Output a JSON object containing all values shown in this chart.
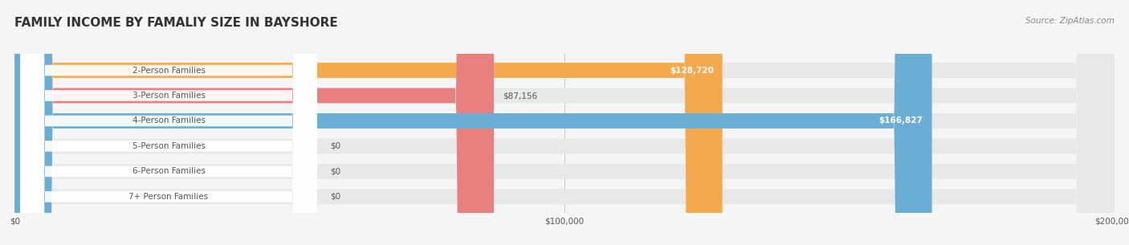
{
  "title": "FAMILY INCOME BY FAMALIY SIZE IN BAYSHORE",
  "source": "Source: ZipAtlas.com",
  "categories": [
    "2-Person Families",
    "3-Person Families",
    "4-Person Families",
    "5-Person Families",
    "6-Person Families",
    "7+ Person Families"
  ],
  "values": [
    128720,
    87156,
    166827,
    0,
    0,
    0
  ],
  "bar_colors": [
    "#F5A94E",
    "#E88080",
    "#6AAED6",
    "#C9A8D4",
    "#6BBFB5",
    "#A8B8E8"
  ],
  "value_labels": [
    "$128,720",
    "$87,156",
    "$166,827",
    "$0",
    "$0",
    "$0"
  ],
  "xmax": 200000,
  "xticks": [
    0,
    100000,
    200000
  ],
  "xtick_labels": [
    "$0",
    "$100,000",
    "$200,000"
  ],
  "bg_color": "#f5f5f5",
  "bar_bg_color": "#e8e8e8",
  "title_color": "#333333",
  "label_text_color": "#555555",
  "title_fontsize": 11,
  "label_fontsize": 7.5,
  "value_fontsize": 7.5,
  "source_fontsize": 7.5
}
